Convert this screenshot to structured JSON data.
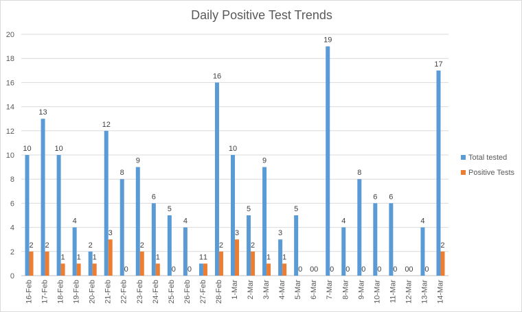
{
  "chart_data": {
    "type": "bar",
    "title": "Daily Positive Test Trends",
    "xlabel": "",
    "ylabel": "",
    "ylim": [
      0,
      20
    ],
    "yticks": [
      0,
      2,
      4,
      6,
      8,
      10,
      12,
      14,
      16,
      18,
      20
    ],
    "grid": true,
    "legend_position": "right",
    "categories": [
      "16-Feb",
      "17-Feb",
      "18-Feb",
      "19-Feb",
      "20-Feb",
      "21-Feb",
      "22-Feb",
      "23-Feb",
      "24-Feb",
      "25-Feb",
      "26-Feb",
      "27-Feb",
      "28-Feb",
      "1-Mar",
      "2-Mar",
      "3-Mar",
      "4-Mar",
      "5-Mar",
      "6-Mar",
      "7-Mar",
      "8-Mar",
      "9-Mar",
      "10-Mar",
      "11-Mar",
      "12-Mar",
      "13-Mar",
      "14-Mar"
    ],
    "series": [
      {
        "name": "Total tested",
        "color": "#5b9bd5",
        "values": [
          10,
          13,
          10,
          4,
          2,
          12,
          8,
          9,
          6,
          5,
          4,
          1,
          16,
          10,
          5,
          9,
          3,
          5,
          0,
          19,
          4,
          8,
          6,
          6,
          0,
          4,
          17
        ]
      },
      {
        "name": "Positive Tests",
        "color": "#ed7d31",
        "values": [
          2,
          2,
          1,
          1,
          1,
          3,
          0,
          2,
          1,
          0,
          0,
          1,
          2,
          3,
          2,
          1,
          1,
          0,
          0,
          0,
          0,
          0,
          0,
          0,
          0,
          0,
          2
        ]
      }
    ]
  }
}
